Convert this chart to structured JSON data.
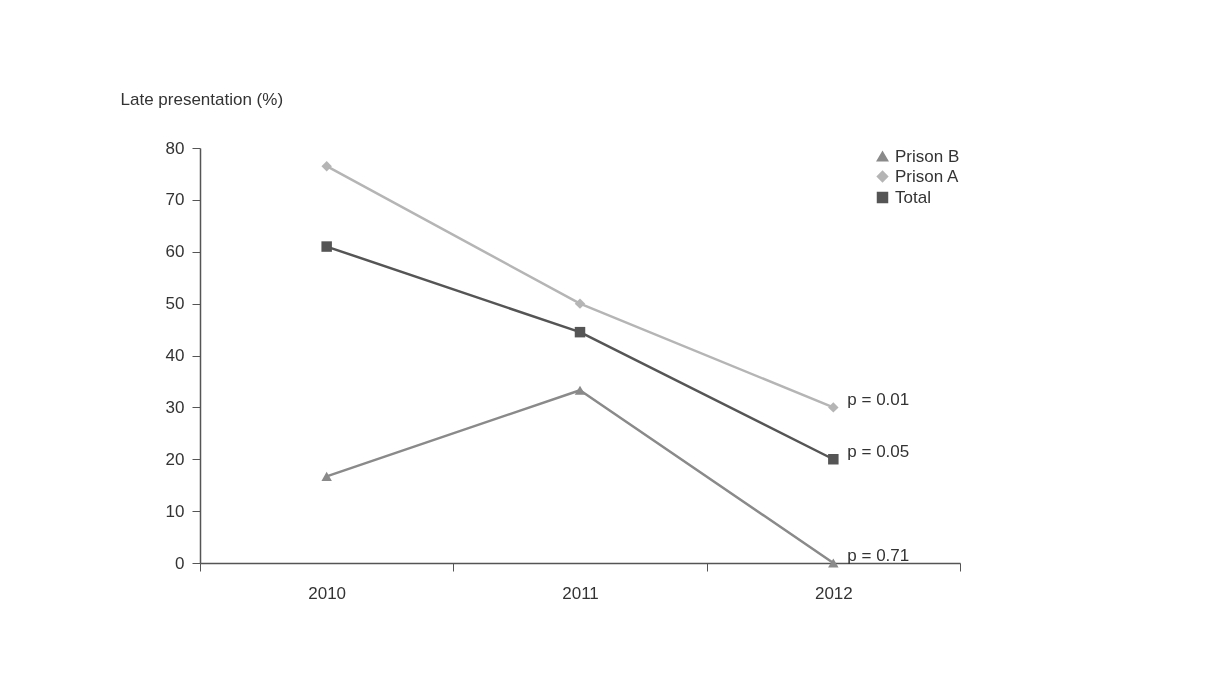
{
  "chart_data": {
    "type": "line",
    "ylabel": "Late presentation (%)",
    "categories": [
      "2010",
      "2011",
      "2012"
    ],
    "series": [
      {
        "name": "Prison B",
        "color": "#8a8a8a",
        "marker": "triangle",
        "values": [
          16.7,
          33.3,
          0
        ]
      },
      {
        "name": "Prison A",
        "color": "#b5b5b5",
        "marker": "diamond",
        "values": [
          76.5,
          50,
          30
        ]
      },
      {
        "name": "Total",
        "color": "#555555",
        "marker": "square",
        "values": [
          61,
          44.5,
          20
        ]
      }
    ],
    "ylim": [
      0,
      80
    ],
    "yticks": [
      0,
      10,
      20,
      30,
      40,
      50,
      60,
      70,
      80
    ],
    "grid": false,
    "legend": "top right",
    "line_style": "solid",
    "annotations": [
      {
        "text": "p = 0.01",
        "x": "2012",
        "y": 30
      },
      {
        "text": "p = 0.05",
        "x": "2012",
        "y": 20
      },
      {
        "text": "p = 0.71",
        "x": "2012",
        "y": 0
      }
    ]
  }
}
